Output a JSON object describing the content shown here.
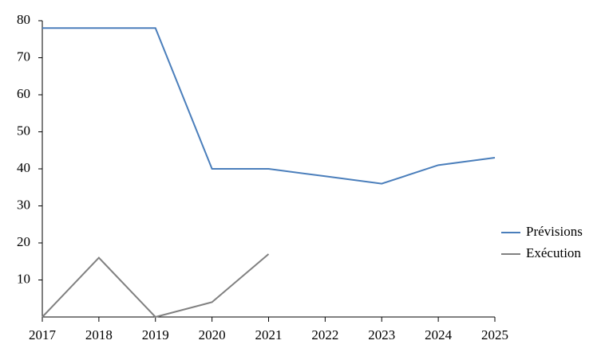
{
  "chart_data": {
    "type": "line",
    "x": [
      2017,
      2018,
      2019,
      2020,
      2021,
      2022,
      2023,
      2024,
      2025
    ],
    "series": [
      {
        "name": "Prévisions",
        "color": "#4a7ebb",
        "values": [
          78,
          78,
          78,
          40,
          40,
          38,
          36,
          41,
          43
        ]
      },
      {
        "name": "Exécution",
        "color": "#808080",
        "values": [
          0,
          16,
          0,
          4,
          17,
          null,
          null,
          null,
          null
        ]
      }
    ],
    "xlim": [
      2017,
      2025
    ],
    "xticks": [
      2017,
      2018,
      2019,
      2020,
      2021,
      2022,
      2023,
      2024,
      2025
    ],
    "ylim": [
      0,
      80
    ],
    "yticks": [
      10,
      20,
      30,
      40,
      50,
      60,
      70,
      80
    ],
    "grid": false,
    "legend": "right"
  }
}
